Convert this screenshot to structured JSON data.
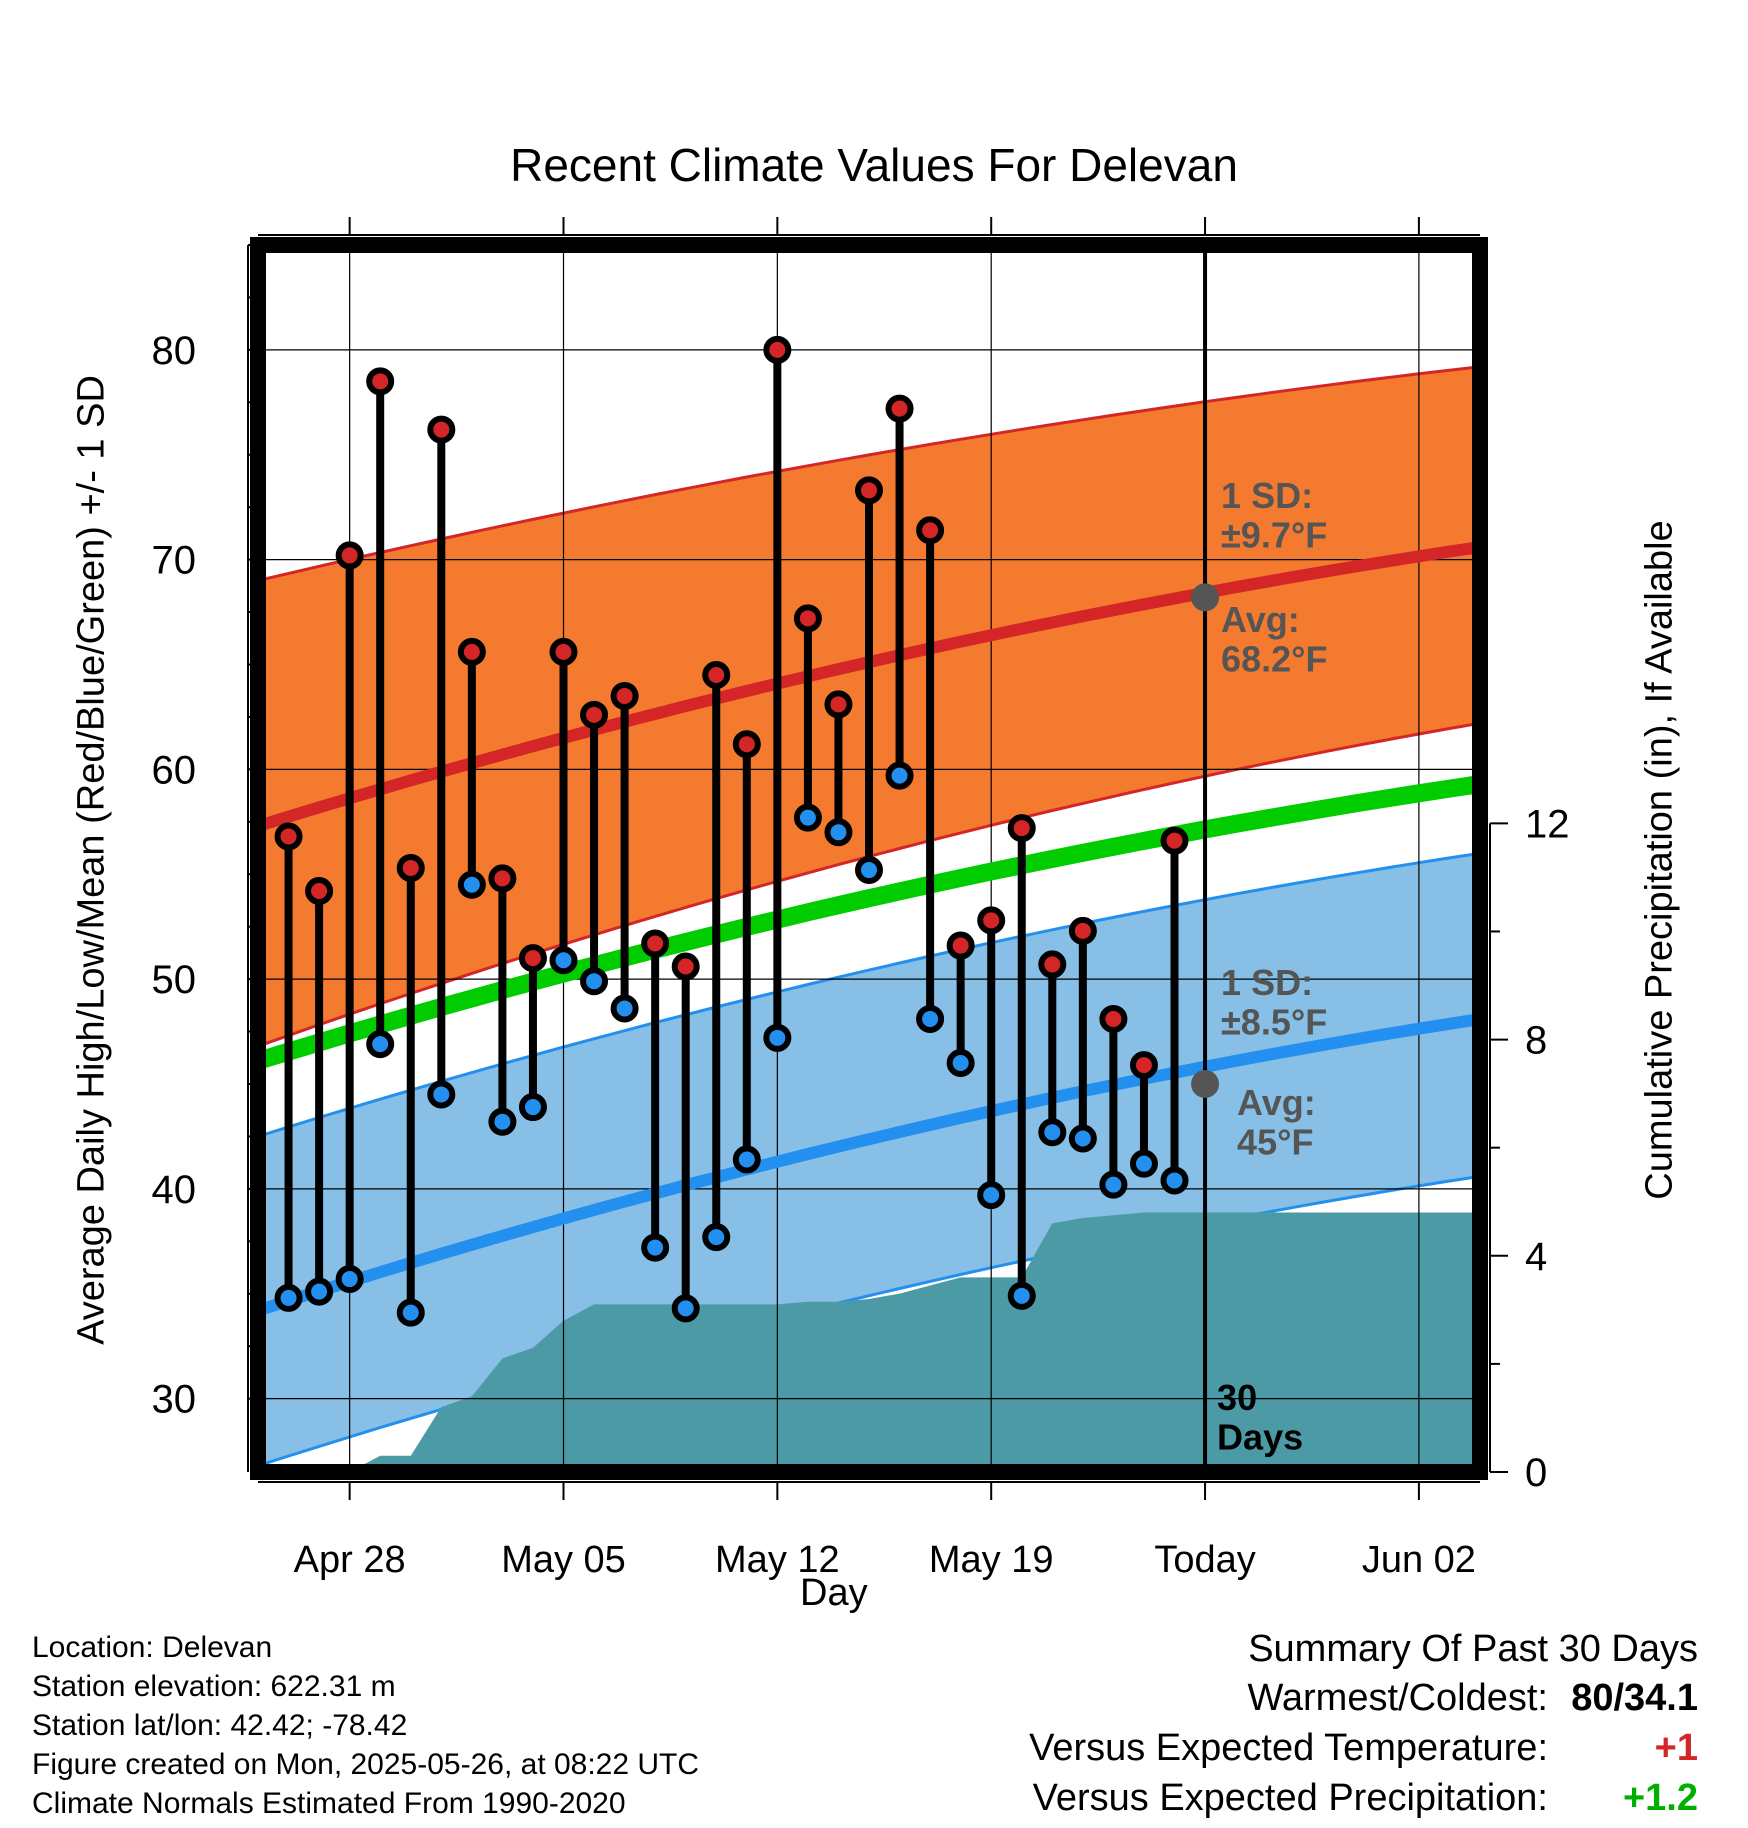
{
  "chart_data": {
    "type": "line",
    "title": "Recent Climate Values For Delevan",
    "xlabel": "Day",
    "ylabel": "Average Daily High/Low/Mean (Red/Blue/Green) +/- 1 SD",
    "y2label": "Cumulative Precipitation (in), If Available",
    "xlim": [
      "2025-04-25",
      "2025-06-04"
    ],
    "ylim": [
      26.5,
      85
    ],
    "y2lim": [
      0,
      22.7
    ],
    "x_ticks": [
      "Apr 28",
      "May 05",
      "May 12",
      "May 19",
      "Today",
      "Jun 02"
    ],
    "y_ticks": [
      30,
      40,
      50,
      60,
      70,
      80
    ],
    "y2_ticks": [
      0,
      4,
      8,
      12
    ],
    "grid": true,
    "today": "2025-05-26",
    "today_label": "30\nDays",
    "normals": {
      "dates": [
        "2025-04-25",
        "2025-06-04"
      ],
      "high_avg": [
        57.3,
        70.6
      ],
      "high_sd_upper": [
        69.0,
        79.2
      ],
      "high_sd_lower": [
        46.8,
        62.2
      ],
      "mean_avg": [
        46.1,
        59.3
      ],
      "low_avg": [
        34.2,
        48.1
      ],
      "low_sd_upper": [
        42.5,
        56.0
      ],
      "low_sd_lower": [
        26.8,
        40.6
      ]
    },
    "annotations": {
      "high_sd": "1 SD:\n±9.7°F",
      "high_avg": "Avg:\n68.2°F",
      "low_sd": "1 SD:\n±8.5°F",
      "low_avg": "Avg:\n45°F",
      "high_avg_today": 68.2,
      "low_avg_today": 45.0
    },
    "observed": {
      "dates": [
        "2025-04-26",
        "2025-04-27",
        "2025-04-28",
        "2025-04-29",
        "2025-04-30",
        "2025-05-01",
        "2025-05-02",
        "2025-05-03",
        "2025-05-04",
        "2025-05-05",
        "2025-05-06",
        "2025-05-07",
        "2025-05-08",
        "2025-05-09",
        "2025-05-10",
        "2025-05-11",
        "2025-05-12",
        "2025-05-13",
        "2025-05-14",
        "2025-05-15",
        "2025-05-16",
        "2025-05-17",
        "2025-05-18",
        "2025-05-19",
        "2025-05-20",
        "2025-05-21",
        "2025-05-22",
        "2025-05-23",
        "2025-05-24",
        "2025-05-25"
      ],
      "highs": [
        56.8,
        54.2,
        70.2,
        78.5,
        55.3,
        76.2,
        65.6,
        54.8,
        51.0,
        65.6,
        62.6,
        63.5,
        51.7,
        50.6,
        64.5,
        61.2,
        80.0,
        67.2,
        63.1,
        73.3,
        77.2,
        71.4,
        51.6,
        52.8,
        57.2,
        50.7,
        52.3,
        48.1,
        45.9,
        56.6
      ],
      "lows": [
        34.8,
        35.1,
        35.7,
        46.9,
        34.1,
        44.5,
        54.5,
        43.2,
        43.9,
        50.9,
        49.9,
        48.6,
        37.2,
        34.3,
        37.7,
        41.4,
        47.2,
        57.7,
        57.0,
        55.2,
        59.7,
        48.1,
        46.0,
        39.7,
        34.9,
        42.7,
        42.4,
        40.2,
        41.2,
        40.4
      ]
    },
    "precip": {
      "dates": [
        "2025-04-27",
        "2025-04-28",
        "2025-04-29",
        "2025-04-30",
        "2025-05-01",
        "2025-05-02",
        "2025-05-03",
        "2025-05-04",
        "2025-05-05",
        "2025-05-06",
        "2025-05-07",
        "2025-05-08",
        "2025-05-09",
        "2025-05-10",
        "2025-05-11",
        "2025-05-12",
        "2025-05-13",
        "2025-05-14",
        "2025-05-15",
        "2025-05-16",
        "2025-05-17",
        "2025-05-18",
        "2025-05-19",
        "2025-05-20",
        "2025-05-21",
        "2025-05-22",
        "2025-05-23",
        "2025-05-24",
        "2025-05-25",
        "2025-05-26",
        "2025-06-04"
      ],
      "values": [
        0.0,
        0.0,
        0.3,
        0.3,
        1.2,
        1.4,
        2.1,
        2.3,
        2.8,
        3.1,
        3.1,
        3.1,
        3.1,
        3.1,
        3.1,
        3.1,
        3.15,
        3.15,
        3.2,
        3.3,
        3.45,
        3.6,
        3.6,
        3.6,
        4.6,
        4.7,
        4.75,
        4.8,
        4.8,
        4.8,
        4.8
      ]
    },
    "colors": {
      "high_band": "#f47a30",
      "high_avg": "#d42626",
      "low_band": "#87bfe6",
      "low_avg": "#2390ef",
      "mean": "#00cc00",
      "precip": "#4b9aa5",
      "high_marker": "#d42626",
      "low_marker": "#2390ef",
      "annotation": "#555555"
    }
  },
  "info": {
    "location": "Location: Delevan",
    "elevation": "Station elevation: 622.31 m",
    "latlon": "Station lat/lon: 42.42; -78.42",
    "created": "Figure created on Mon, 2025-05-26, at 08:22 UTC",
    "normals": "Climate Normals Estimated From 1990-2020"
  },
  "summary": {
    "title": "Summary Of Past 30 Days",
    "warmest_label": "Warmest/Coldest:",
    "warmest_value": "80/34.1",
    "temp_label": "Versus Expected Temperature:",
    "temp_value": "+1",
    "temp_color": "#d42626",
    "precip_label": "Versus Expected Precipitation:",
    "precip_value": "+1.2",
    "precip_color": "#00b000"
  }
}
